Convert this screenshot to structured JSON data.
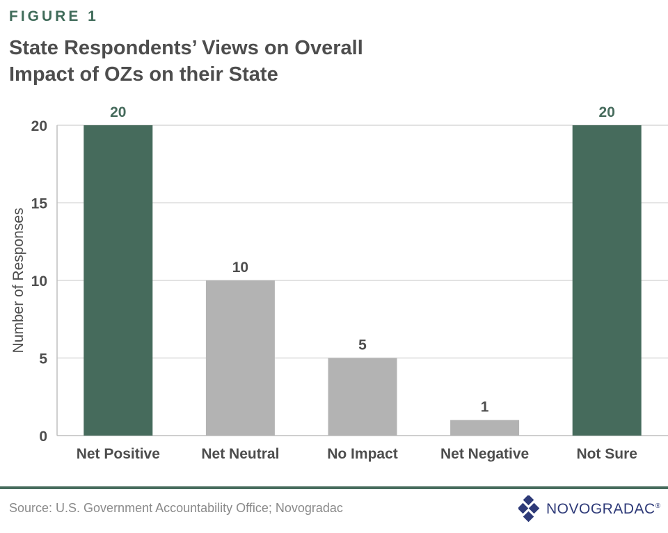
{
  "figure_label": "FIGURE 1",
  "title_line1": "State Respondents’ Views on Overall",
  "title_line2": "Impact of OZs on their State",
  "source": "Source: U.S. Government Accountability Office; Novogradac",
  "logo": {
    "text": "NOVOGRADAC",
    "mark": "®"
  },
  "colors": {
    "highlight": "#466b5c",
    "neutral": "#b3b3b3",
    "rule": "#466b5c",
    "axis_text": "#4d4d4d",
    "grid": "#d9d9d9",
    "logo": "#2e3a78"
  },
  "chart_data": {
    "type": "bar",
    "title": "State Respondents’ Views on Overall Impact of OZs on their State",
    "categories": [
      "Net Positive",
      "Net Neutral",
      "No Impact",
      "Net Negative",
      "Not Sure"
    ],
    "values": [
      20,
      10,
      5,
      1,
      20
    ],
    "highlight": [
      true,
      false,
      false,
      false,
      true
    ],
    "ylabel": "Number of Responses",
    "xlabel": "",
    "ylim": [
      0,
      20
    ],
    "yticks": [
      0,
      5,
      10,
      15,
      20
    ],
    "grid": true
  }
}
